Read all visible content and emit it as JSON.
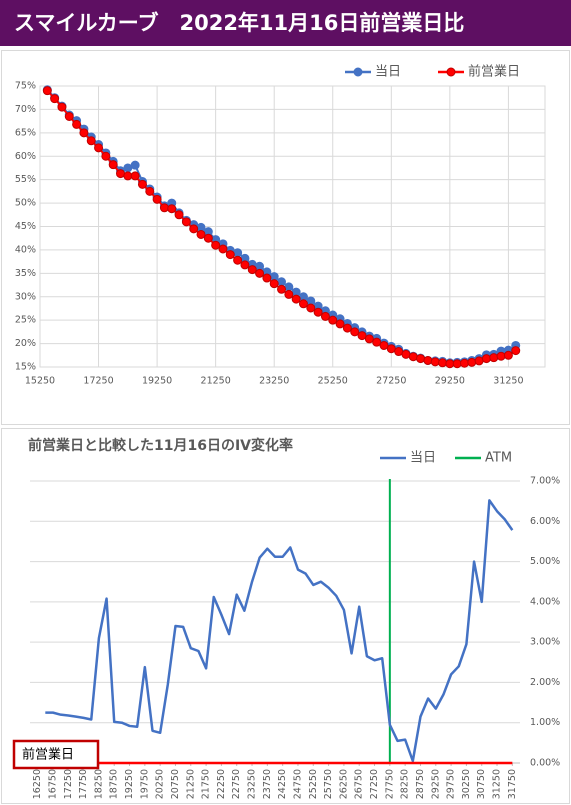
{
  "header": {
    "title": "スマイルカーブ　2022年11月16日前営業日比"
  },
  "chart_data": [
    {
      "type": "line",
      "x": [
        15500,
        15750,
        16000,
        16250,
        16500,
        16750,
        17000,
        17250,
        17500,
        17750,
        18000,
        18250,
        18500,
        18750,
        19000,
        19250,
        19500,
        19750,
        20000,
        20250,
        20500,
        20750,
        21000,
        21250,
        21500,
        21750,
        22000,
        22250,
        22500,
        22750,
        23000,
        23250,
        23500,
        23750,
        24000,
        24250,
        24500,
        24750,
        25000,
        25250,
        25500,
        25750,
        26000,
        26250,
        26500,
        26750,
        27000,
        27250,
        27500,
        27750,
        28000,
        28250,
        28500,
        28750,
        29000,
        29250,
        29500,
        29750,
        30000,
        30250,
        30500,
        30750,
        31000,
        31250,
        31500
      ],
      "series": [
        {
          "name": "当日",
          "color": "#4472c4",
          "values": [
            74.2,
            72.5,
            70.7,
            68.8,
            67.6,
            65.8,
            64.1,
            62.5,
            60.7,
            58.9,
            56.9,
            57.5,
            58.1,
            54.6,
            53.0,
            51.3,
            49.4,
            50.0,
            47.9,
            46.3,
            45.4,
            44.8,
            43.9,
            42.2,
            41.3,
            39.9,
            39.4,
            38.2,
            36.9,
            36.5,
            35.3,
            34.3,
            33.2,
            32.1,
            31.0,
            30.0,
            29.1,
            28.0,
            27.0,
            26.1,
            25.3,
            24.3,
            23.4,
            22.5,
            21.6,
            21.1,
            20.1,
            19.4,
            18.8,
            17.9,
            17.3,
            16.9,
            16.4,
            16.3,
            16.2,
            15.9,
            16.0,
            16.1,
            16.4,
            16.8,
            17.6,
            17.7,
            18.4,
            18.6,
            19.6
          ]
        },
        {
          "name": "前営業日",
          "color": "#ff0000",
          "values": [
            74,
            72.3,
            70.5,
            68.5,
            66.8,
            65,
            63.3,
            61.8,
            60,
            58.2,
            56.3,
            55.8,
            55.8,
            54,
            52.5,
            50.8,
            49,
            48.8,
            47.5,
            46,
            44.5,
            43.3,
            42.5,
            41,
            40.2,
            39,
            37.8,
            36.8,
            35.8,
            35,
            34,
            32.8,
            31.6,
            30.5,
            29.5,
            28.5,
            27.6,
            26.7,
            25.8,
            25,
            24.2,
            23.3,
            22.5,
            21.7,
            21,
            20.3,
            19.6,
            18.9,
            18.3,
            17.7,
            17.2,
            16.8,
            16.4,
            16.1,
            15.9,
            15.7,
            15.7,
            15.8,
            16,
            16.3,
            16.8,
            17,
            17.3,
            17.5,
            18.5
          ]
        }
      ],
      "xlim": [
        15250,
        32500
      ],
      "xticks": [
        15250,
        17250,
        19250,
        21250,
        23250,
        25250,
        27250,
        29250,
        31250
      ],
      "ylim": [
        15,
        75
      ],
      "yticks": [
        {
          "value": 15,
          "label": "15%"
        },
        {
          "value": 20,
          "label": "20%"
        },
        {
          "value": 25,
          "label": "25%"
        },
        {
          "value": 30,
          "label": "30%"
        },
        {
          "value": 35,
          "label": "35%"
        },
        {
          "value": 40,
          "label": "40%"
        },
        {
          "value": 45,
          "label": "45%"
        },
        {
          "value": 50,
          "label": "50%"
        },
        {
          "value": 55,
          "label": "55%"
        },
        {
          "value": 60,
          "label": "60%"
        },
        {
          "value": 65,
          "label": "65%"
        },
        {
          "value": 70,
          "label": "70%"
        },
        {
          "value": 75,
          "label": "75%"
        }
      ],
      "grid": true,
      "markers": true,
      "legend": "top-right",
      "y_axis_side": "left"
    },
    {
      "type": "line",
      "title": "前営業日と比較した11月16日のIV変化率",
      "x": [
        16500,
        16750,
        17000,
        17250,
        17500,
        17750,
        18000,
        18250,
        18500,
        18750,
        19000,
        19250,
        19500,
        19750,
        20000,
        20250,
        20500,
        20750,
        21000,
        21250,
        21500,
        21750,
        22000,
        22250,
        22500,
        22750,
        23000,
        23250,
        23500,
        23750,
        24000,
        24250,
        24500,
        24750,
        25000,
        25250,
        25500,
        25750,
        26000,
        26250,
        26500,
        26750,
        27000,
        27250,
        27500,
        27750,
        28000,
        28250,
        28500,
        28750,
        29000,
        29250,
        29500,
        29750,
        30000,
        30250,
        30500,
        30750,
        31000,
        31250,
        31500,
        31750
      ],
      "series": [
        {
          "name": "当日",
          "color": "#4472c4",
          "values": [
            1.25,
            1.25,
            1.2,
            1.18,
            1.15,
            1.12,
            1.08,
            3.1,
            4.08,
            1.02,
            1.0,
            0.92,
            0.9,
            2.38,
            0.8,
            0.75,
            1.95,
            3.4,
            3.38,
            2.85,
            2.78,
            2.35,
            4.12,
            3.68,
            3.2,
            4.18,
            3.78,
            4.5,
            5.1,
            5.32,
            5.12,
            5.12,
            5.35,
            4.8,
            4.7,
            4.42,
            4.5,
            4.35,
            4.15,
            3.8,
            2.72,
            3.88,
            2.65,
            2.55,
            2.6,
            0.95,
            0.55,
            0.58,
            0.05,
            1.15,
            1.6,
            1.35,
            1.7,
            2.2,
            2.4,
            2.95,
            5.0,
            4.0,
            6.52,
            6.25,
            6.05,
            5.78
          ]
        },
        {
          "name": "前営業日",
          "color": "#ff0000",
          "in_legend": false,
          "values": [
            0,
            0,
            0,
            0,
            0,
            0,
            0,
            0,
            0,
            0,
            0,
            0,
            0,
            0,
            0,
            0,
            0,
            0,
            0,
            0,
            0,
            0,
            0,
            0,
            0,
            0,
            0,
            0,
            0,
            0,
            0,
            0,
            0,
            0,
            0,
            0,
            0,
            0,
            0,
            0,
            0,
            0,
            0,
            0,
            0,
            0,
            0,
            0,
            0,
            0,
            0,
            0,
            0,
            0,
            0,
            0,
            0,
            0,
            0,
            0,
            0,
            0
          ]
        }
      ],
      "vlines": [
        {
          "name": "ATM",
          "x": 27750,
          "color": "#00b050"
        }
      ],
      "xlim": [
        16000,
        32000
      ],
      "xticks": [
        16250,
        16750,
        17250,
        17750,
        18250,
        18750,
        19250,
        19750,
        20250,
        20750,
        21250,
        21750,
        22250,
        22750,
        23250,
        23750,
        24250,
        24750,
        25250,
        25750,
        26250,
        26750,
        27250,
        27750,
        28250,
        28750,
        29250,
        29750,
        30250,
        30750,
        31250,
        31750
      ],
      "ylim": [
        0,
        7
      ],
      "yticks": [
        {
          "value": 0,
          "label": "0.00%"
        },
        {
          "value": 1,
          "label": "1.00%"
        },
        {
          "value": 2,
          "label": "2.00%"
        },
        {
          "value": 3,
          "label": "3.00%"
        },
        {
          "value": 4,
          "label": "4.00%"
        },
        {
          "value": 5,
          "label": "5.00%"
        },
        {
          "value": 6,
          "label": "6.00%"
        },
        {
          "value": 7,
          "label": "7.00%"
        }
      ],
      "grid": true,
      "markers": false,
      "legend": "top-right",
      "y_axis_side": "right"
    }
  ]
}
